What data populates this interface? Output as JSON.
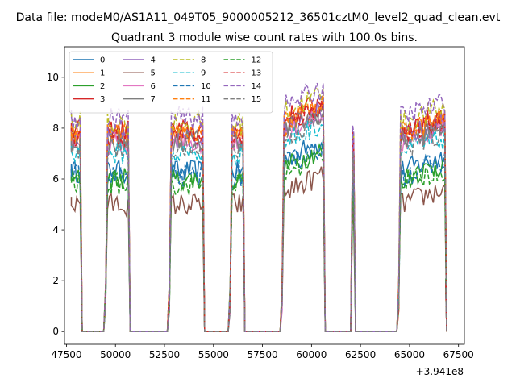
{
  "chart_data": {
    "type": "line",
    "suptitle": "Data file: modeM0/AS1A11_049T05_9000005212_36501cztM0_level2_quad_clean.evt",
    "title": "Quadrant 3 module wise count rates with 100.0s bins.",
    "xlabel": "",
    "ylabel": "",
    "x_offset_label": "+3.941e8",
    "xlim": [
      47400,
      67800
    ],
    "ylim": [
      -0.5,
      11.2
    ],
    "x_ticks": [
      47500,
      50000,
      52500,
      55000,
      57500,
      60000,
      62500,
      65000,
      67500
    ],
    "y_ticks": [
      0,
      2,
      4,
      6,
      8,
      10
    ],
    "legend_position": "top-left",
    "grid": false,
    "segments": [
      {
        "x0": 47750,
        "x1": 48200
      },
      {
        "x0": 49500,
        "x1": 50650
      },
      {
        "x0": 52750,
        "x1": 54450
      },
      {
        "x0": 55850,
        "x1": 56500
      },
      {
        "x0": 58500,
        "x1": 60600
      },
      {
        "x0": 62100,
        "x1": 62150
      },
      {
        "x0": 64450,
        "x1": 66800
      }
    ],
    "series": [
      {
        "name": "0",
        "color": "#1f77b4",
        "dash": false,
        "base": 6.3
      },
      {
        "name": "1",
        "color": "#ff7f0e",
        "dash": false,
        "base": 7.7
      },
      {
        "name": "2",
        "color": "#2ca02c",
        "dash": false,
        "base": 6.0
      },
      {
        "name": "3",
        "color": "#d62728",
        "dash": false,
        "base": 7.9
      },
      {
        "name": "4",
        "color": "#9467bd",
        "dash": false,
        "base": 7.6
      },
      {
        "name": "5",
        "color": "#8c564b",
        "dash": false,
        "base": 5.0
      },
      {
        "name": "6",
        "color": "#e377c2",
        "dash": false,
        "base": 7.4
      },
      {
        "name": "7",
        "color": "#7f7f7f",
        "dash": false,
        "base": 7.5
      },
      {
        "name": "8",
        "color": "#bcbd22",
        "dash": true,
        "base": 8.2
      },
      {
        "name": "9",
        "color": "#17becf",
        "dash": true,
        "base": 7.0
      },
      {
        "name": "10",
        "color": "#1f77b4",
        "dash": true,
        "base": 6.1
      },
      {
        "name": "11",
        "color": "#ff7f0e",
        "dash": true,
        "base": 7.8
      },
      {
        "name": "12",
        "color": "#2ca02c",
        "dash": true,
        "base": 5.8
      },
      {
        "name": "13",
        "color": "#d62728",
        "dash": true,
        "base": 7.7
      },
      {
        "name": "14",
        "color": "#9467bd",
        "dash": true,
        "base": 8.4
      },
      {
        "name": "15",
        "color": "#7f7f7f",
        "dash": true,
        "base": 7.2
      }
    ]
  }
}
